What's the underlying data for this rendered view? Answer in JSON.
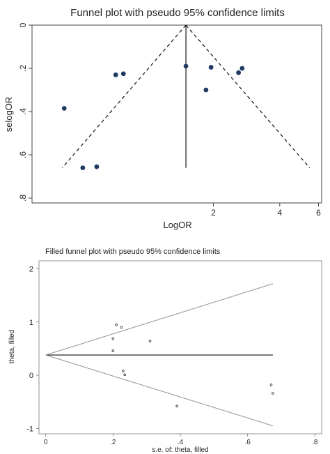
{
  "chart_data": [
    {
      "type": "scatter",
      "title": "Funnel plot with pseudo 95% confidence limits",
      "xlabel": "LogOR",
      "ylabel": "selogOR",
      "x_scale": "log",
      "x_ticks": [
        2,
        4,
        6
      ],
      "x_tick_labels": [
        "2",
        "4",
        "6"
      ],
      "y_ticks": [
        0,
        0.2,
        0.4,
        0.6,
        0.8
      ],
      "y_tick_labels": [
        "0",
        ".2",
        ".4",
        ".6",
        ".8"
      ],
      "y_reversed": true,
      "xlim": [
        0.3,
        6.2
      ],
      "ylim": [
        0,
        0.8
      ],
      "pooled_estimate": 1.5,
      "ci_bottom_se": 0.66,
      "points": [
        {
          "x": 0.42,
          "y": 0.385
        },
        {
          "x": 0.51,
          "y": 0.66
        },
        {
          "x": 0.59,
          "y": 0.655
        },
        {
          "x": 0.72,
          "y": 0.23
        },
        {
          "x": 0.78,
          "y": 0.225
        },
        {
          "x": 1.5,
          "y": 0.19
        },
        {
          "x": 1.85,
          "y": 0.3
        },
        {
          "x": 1.95,
          "y": 0.195
        },
        {
          "x": 2.6,
          "y": 0.22
        },
        {
          "x": 2.7,
          "y": 0.2
        }
      ],
      "colors": {
        "points": "#1f3b63",
        "lines": "#111111",
        "frame": "#444444"
      }
    },
    {
      "type": "scatter",
      "title": "Filled funnel plot with pseudo 95% confidence limits",
      "xlabel": "s.e. of: theta, filled",
      "ylabel": "theta, filled",
      "x_ticks": [
        0,
        0.2,
        0.4,
        0.6,
        0.8
      ],
      "x_tick_labels": [
        "0",
        ".2",
        ".4",
        ".6",
        ".8"
      ],
      "y_ticks": [
        -1,
        0,
        1,
        2
      ],
      "y_tick_labels": [
        "-1",
        "0",
        "1",
        "2"
      ],
      "xlim": [
        -0.02,
        0.82
      ],
      "ylim": [
        -1.1,
        2.15
      ],
      "pooled_estimate": 0.38,
      "ci_end_se": 0.675,
      "ci_upper_end": 1.72,
      "ci_lower_end": -0.95,
      "points": [
        {
          "x": 0.2,
          "y": 0.46
        },
        {
          "x": 0.2,
          "y": 0.69
        },
        {
          "x": 0.21,
          "y": 0.95
        },
        {
          "x": 0.225,
          "y": 0.9
        },
        {
          "x": 0.23,
          "y": 0.08
        },
        {
          "x": 0.235,
          "y": 0.01
        },
        {
          "x": 0.31,
          "y": 0.64
        },
        {
          "x": 0.39,
          "y": -0.58
        },
        {
          "x": 0.67,
          "y": -0.18
        },
        {
          "x": 0.675,
          "y": -0.34
        }
      ],
      "colors": {
        "points": "#333333",
        "ci_lines": "#9a9a9a",
        "estimate_line": "#111111"
      }
    }
  ]
}
